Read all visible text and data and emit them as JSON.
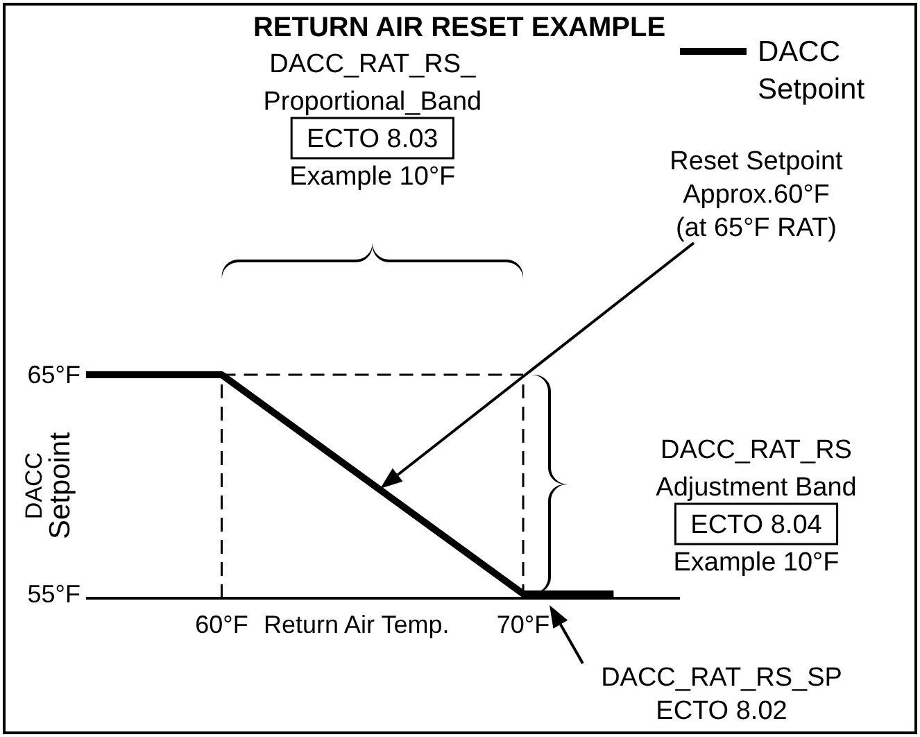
{
  "chart_data": {
    "type": "line",
    "title": "RETURN AIR RESET EXAMPLE",
    "ylabel": "DACC\nSetpoint",
    "xlabel": "Return Air Temp.",
    "x": [
      55.5,
      60,
      70,
      73
    ],
    "series": [
      {
        "name": "DACC\nSetpoint",
        "color": "#000000",
        "values": [
          65,
          65,
          55,
          55
        ]
      }
    ],
    "xlim": [
      55.5,
      75.2
    ],
    "ylim": [
      54.8,
      65
    ],
    "xticks": [
      {
        "value": 60,
        "label": "60°F"
      },
      {
        "value": 70,
        "label": "70°F"
      }
    ],
    "yticks": [
      {
        "value": 55,
        "label": "55°F"
      },
      {
        "value": 65,
        "label": "65°F"
      }
    ],
    "ref_lines": [
      {
        "axis": "x",
        "value": 60,
        "line_style": "dashed"
      },
      {
        "axis": "x",
        "value": 70,
        "line_style": "dashed"
      },
      {
        "axis": "y",
        "value": 65,
        "line_style": "dashed"
      }
    ],
    "legend": "top right",
    "grid": false,
    "marker": "none",
    "line_style": "solid",
    "annotations": [
      "DACC_RAT_RS_\nProportional_Band",
      "ECTO 8.03",
      "Example 10°F",
      "DACC_RAT_RS\nAdjustment Band",
      "ECTO 8.04",
      "Example 10°F",
      "Reset Setpoint\nApprox.60°F\n(at 65°F RAT)",
      "DACC_RAT_RS_SP\nECTO 8.02"
    ]
  }
}
